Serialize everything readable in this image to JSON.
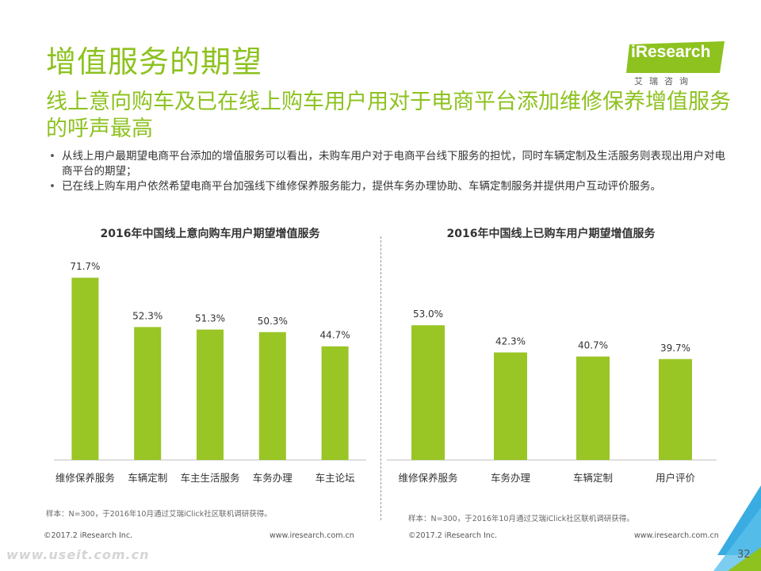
{
  "title": "增值服务的期望",
  "subtitle": "线上意向购车及已在线上购车用户用对于电商平台添加维修保养增值服务的呼声最高",
  "logo": {
    "text": "iResearch",
    "cn": "艾瑞咨询"
  },
  "bullets": [
    "从线上用户最期望电商平台添加的增值服务可以看出，未购车用户对于电商平台线下服务的担忧，同时车辆定制及生活服务则表现出用户对电商平台的期望；",
    "已在线上购车用户依然希望电商平台加强线下维修保养服务能力，提供车务办理协助、车辆定制服务并提供用户互动评价服务。"
  ],
  "notes": {
    "left": "样本：N=300，于2016年10月通过艾瑞iClick社区联机调研获得。",
    "right": "样本：N=300，于2016年10月通过艾瑞iClick社区联机调研获得。"
  },
  "footer": {
    "left_copy": "©2017.2 iResearch Inc.",
    "left_url": "www.iresearch.com.cn",
    "right_copy": "©2017.2 iResearch Inc.",
    "right_url": "www.iresearch.com.cn"
  },
  "page_number": "32",
  "watermark": "www.useit.com.cn",
  "colors": {
    "accent": "#8dc21f",
    "bar": "#99c525",
    "corner_blue": "#2ea8e0",
    "corner_green": "#8dc21f"
  },
  "chart_data": [
    {
      "type": "bar",
      "title": "2016年中国线上意向购车用户期望增值服务",
      "categories": [
        "维修保养服务",
        "车辆定制",
        "车主生活服务",
        "车务办理",
        "车主论坛"
      ],
      "values": [
        71.7,
        52.3,
        51.3,
        50.3,
        44.7
      ],
      "labels": [
        "71.7%",
        "52.3%",
        "51.3%",
        "50.3%",
        "44.7%"
      ],
      "ylim": [
        0,
        80
      ],
      "grid": false,
      "legend": "none"
    },
    {
      "type": "bar",
      "title": "2016年中国线上已购车用户期望增值服务",
      "categories": [
        "维修保养服务",
        "车务办理",
        "车辆定制",
        "用户评价"
      ],
      "values": [
        53.0,
        42.3,
        40.7,
        39.7
      ],
      "labels": [
        "53.0%",
        "42.3%",
        "40.7%",
        "39.7%"
      ],
      "ylim": [
        0,
        80
      ],
      "grid": false,
      "legend": "none"
    }
  ]
}
